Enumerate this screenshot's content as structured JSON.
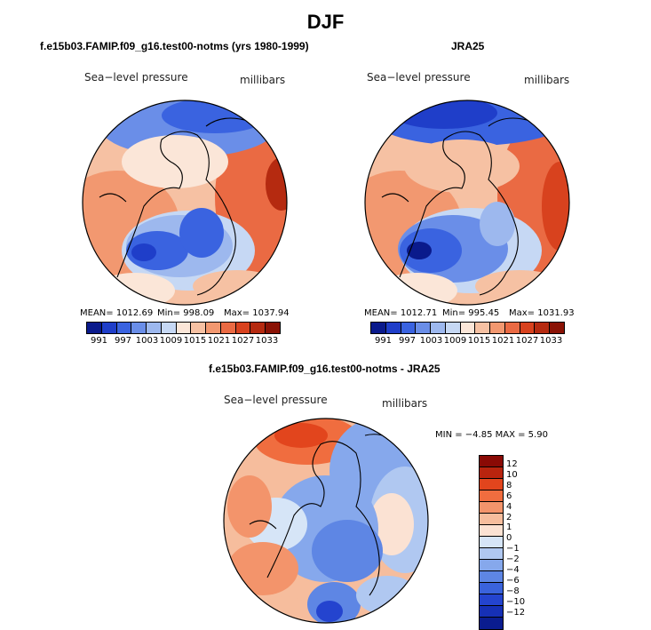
{
  "title": "DJF",
  "panels": [
    {
      "heading": "f.e15b03.FAMIP.f09_g16.test00-notms (yrs 1980-1999)",
      "left_label": "Sea−level pressure",
      "right_label": "millibars",
      "stats": {
        "mean": "MEAN= 1012.69",
        "min": "Min= 998.09",
        "max": "Max= 1037.94"
      }
    },
    {
      "heading": "JRA25",
      "left_label": "Sea−level pressure",
      "right_label": "millibars",
      "stats": {
        "mean": "MEAN= 1012.71",
        "min": "Min= 995.45",
        "max": "Max= 1031.93"
      }
    },
    {
      "heading": "f.e15b03.FAMIP.f09_g16.test00-notms - JRA25",
      "left_label": "Sea−level pressure",
      "right_label": "millibars",
      "stats": {
        "minmax": "MIN =   −4.85  MAX =    5.90"
      }
    }
  ],
  "colorbar_abs": {
    "colors": [
      "#0a1a8c",
      "#1f3ec9",
      "#3a63e0",
      "#6a8ee8",
      "#9db8ee",
      "#c6d8f4",
      "#fbe6d8",
      "#f6c1a3",
      "#f29870",
      "#ea6a43",
      "#d8421e",
      "#b52a10",
      "#8a1205"
    ],
    "ticks": [
      "991",
      "997",
      "1003",
      "1009",
      "1015",
      "1021",
      "1027",
      "1033"
    ]
  },
  "colorbar_diff": {
    "colors": [
      "#8a0a05",
      "#b8240e",
      "#e2451d",
      "#f06d3f",
      "#f3946b",
      "#f6bd9d",
      "#fbe2d3",
      "#d6e5f7",
      "#b0c8f1",
      "#86a8ec",
      "#5e86e4",
      "#3a63dc",
      "#2444cf",
      "#1630b6",
      "#0a1c8f"
    ],
    "ticks": [
      "12",
      "10",
      "8",
      "6",
      "4",
      "2",
      "1",
      "0",
      "−1",
      "−2",
      "−4",
      "−6",
      "−8",
      "−10",
      "−12"
    ]
  }
}
